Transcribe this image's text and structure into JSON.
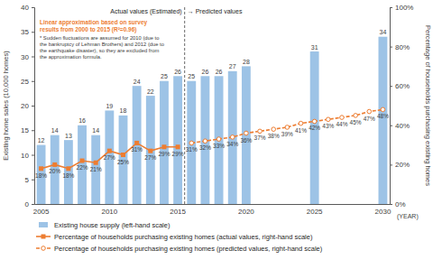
{
  "chart_data": {
    "type": "bar",
    "y_label": "Existing home sales (10,000 homes)",
    "y2_label": "Percentage of households purchasing existing homes",
    "x_label": "(YEAR)",
    "categories": [
      "2005",
      null,
      null,
      null,
      null,
      "2010",
      null,
      null,
      null,
      null,
      "2015",
      null,
      null,
      null,
      null,
      "2020",
      null,
      null,
      null,
      null,
      "2025",
      null,
      null,
      null,
      null,
      "2030"
    ],
    "ylim": [
      0,
      40
    ],
    "yticks": [
      0,
      5,
      10,
      15,
      20,
      25,
      30,
      35,
      40
    ],
    "y2lim": [
      0,
      100
    ],
    "y2ticks": [
      {
        "value": 0,
        "label": "0%"
      },
      {
        "value": 20,
        "label": "20%"
      },
      {
        "value": 40,
        "label": "40%"
      },
      {
        "value": 60,
        "label": "60%"
      },
      {
        "value": 80,
        "label": "80%"
      },
      {
        "value": 100,
        "label": "100%"
      }
    ],
    "annotations": [
      "Actual values (Estimated)",
      "→ Predicted values",
      "Linear approximation based on survey results from 2000 to 2015 (R²=0.96)",
      "* Sudden fluctuations are assumed for 2010 (due to the bankruptcy of Lehman Brothers) and 2012 (due to the earthquake disaster), so they are excluded from the approximation formula."
    ],
    "data_labels": true,
    "series": [
      {
        "name": "Existing house supply (left-hand scale)",
        "type": "bar",
        "color": "#9dc3e6",
        "values": [
          12,
          14,
          13,
          16,
          14,
          19,
          18,
          24,
          22,
          25,
          26,
          25,
          26,
          26,
          27,
          28,
          null,
          null,
          null,
          null,
          31,
          null,
          null,
          null,
          null,
          34
        ]
      },
      {
        "name": "Percentage of households purchasing existing homes (actual values, right-hand scale)",
        "type": "line",
        "axis": "y2",
        "color": "#ed7d31",
        "marker": "square",
        "line_style": "solid",
        "values": [
          18,
          20,
          18,
          22,
          21,
          27,
          25,
          31,
          27,
          29,
          29,
          null,
          null,
          null,
          null,
          null,
          null,
          null,
          null,
          null,
          null,
          null,
          null,
          null,
          null,
          null
        ],
        "value_labels": [
          "18%",
          "20%",
          "18%",
          "22%",
          "21%",
          "27%",
          "25%",
          "31%",
          "27%",
          "29%",
          "29%",
          null,
          null,
          null,
          null,
          null,
          null,
          null,
          null,
          null,
          null,
          null,
          null,
          null,
          null,
          null
        ]
      },
      {
        "name": "Percentage of households purchasing existing homes (predicted values, right-hand scale)",
        "type": "line",
        "axis": "y2",
        "color": "#ed7d31",
        "marker": "circle",
        "line_style": "dashed",
        "values": [
          null,
          null,
          null,
          null,
          null,
          null,
          null,
          null,
          null,
          null,
          null,
          31,
          32,
          33,
          34,
          36,
          37,
          38,
          39,
          41,
          42,
          43,
          44,
          45,
          47,
          48
        ],
        "value_labels": [
          null,
          null,
          null,
          null,
          null,
          null,
          null,
          null,
          null,
          null,
          null,
          "31%",
          "32%",
          "33%",
          "34%",
          "36%",
          "37%",
          "38%",
          "39%",
          "41%",
          "42%",
          "43%",
          "44%",
          "45%",
          "47%",
          "48%"
        ]
      }
    ]
  }
}
